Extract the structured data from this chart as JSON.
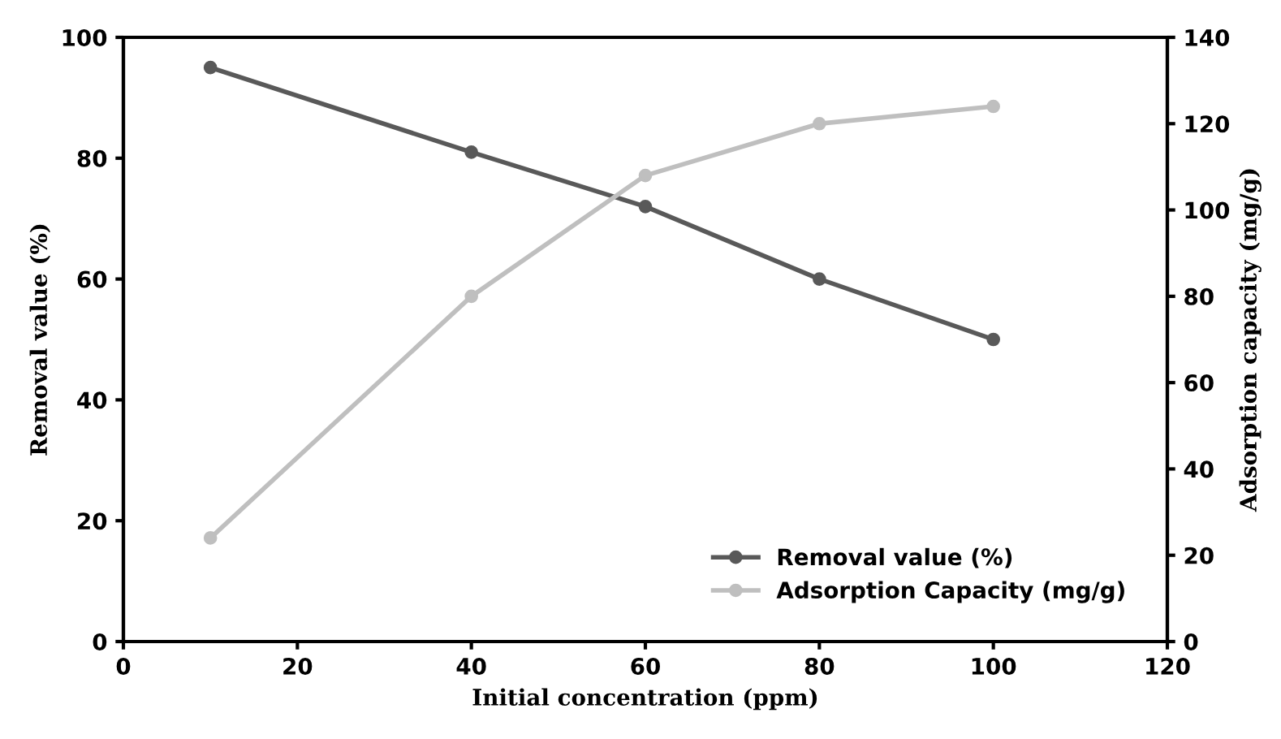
{
  "chart_data": {
    "type": "line",
    "xlabel": "Initial concentration (ppm)",
    "ylabel": "Removal value (%)",
    "y2label": "Adsorption capacity (mg/g)",
    "x": [
      10,
      40,
      60,
      80,
      100
    ],
    "series": [
      {
        "name": "Removal value (%)",
        "color": "#595959",
        "values": [
          95,
          81,
          72,
          60,
          50
        ]
      },
      {
        "name": "Adsorption Capacity (mg/g)",
        "color": "#bfbfbf",
        "values": [
          24,
          80,
          108,
          120,
          124
        ],
        "axis": "y2"
      }
    ],
    "xlim": [
      0,
      120
    ],
    "xticks": [
      0,
      20,
      40,
      60,
      80,
      100,
      120
    ],
    "ylim": [
      0,
      100
    ],
    "yticks": [
      0,
      20,
      40,
      60,
      80,
      100
    ],
    "y2lim": [
      0,
      140
    ],
    "y2ticks": [
      0,
      20,
      40,
      60,
      80,
      100,
      120,
      140
    ],
    "marker": "circle",
    "line_style": "solid",
    "grid": false,
    "legend": "bottom right"
  }
}
